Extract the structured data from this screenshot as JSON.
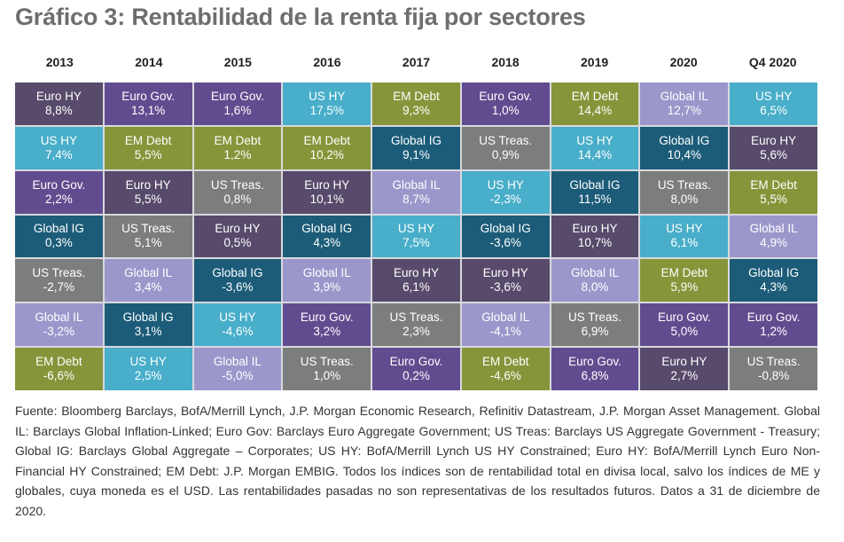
{
  "title": "Gráfico 3: Rentabilidad de la renta fija por sectores",
  "chart_data": {
    "type": "table",
    "title": "Gráfico 3: Rentabilidad de la renta fija por sectores",
    "columns": [
      "2013",
      "2014",
      "2015",
      "2016",
      "2017",
      "2018",
      "2019",
      "2020",
      "Q4 2020"
    ],
    "ranking_note": "Each column ranked from highest (top) to lowest (bottom) return",
    "sector_colors": {
      "Euro HY": "#574a6b",
      "Euro Gov.": "#614c8f",
      "US HY": "#48aec9",
      "EM Debt": "#86953a",
      "Global IG": "#1c5c79",
      "US Treas.": "#7b7e7c",
      "Global IL": "#9c97cb"
    },
    "data": [
      [
        {
          "name": "Euro HY",
          "value": "8,8%"
        },
        {
          "name": "US HY",
          "value": "7,4%"
        },
        {
          "name": "Euro Gov.",
          "value": "2,2%"
        },
        {
          "name": "Global IG",
          "value": "0,3%"
        },
        {
          "name": "US Treas.",
          "value": "-2,7%"
        },
        {
          "name": "Global IL",
          "value": "-3,2%"
        },
        {
          "name": "EM Debt",
          "value": "-6,6%"
        }
      ],
      [
        {
          "name": "Euro Gov.",
          "value": "13,1%"
        },
        {
          "name": "EM Debt",
          "value": "5,5%"
        },
        {
          "name": "Euro HY",
          "value": "5,5%"
        },
        {
          "name": "US Treas.",
          "value": "5,1%"
        },
        {
          "name": "Global IL",
          "value": "3,4%"
        },
        {
          "name": "Global IG",
          "value": "3,1%"
        },
        {
          "name": "US HY",
          "value": "2,5%"
        }
      ],
      [
        {
          "name": "Euro Gov.",
          "value": "1,6%"
        },
        {
          "name": "EM Debt",
          "value": "1,2%"
        },
        {
          "name": "US Treas.",
          "value": "0,8%"
        },
        {
          "name": "Euro HY",
          "value": "0,5%"
        },
        {
          "name": "Global IG",
          "value": "-3,6%"
        },
        {
          "name": "US HY",
          "value": "-4,6%"
        },
        {
          "name": "Global IL",
          "value": "-5,0%"
        }
      ],
      [
        {
          "name": "US HY",
          "value": "17,5%"
        },
        {
          "name": "EM Debt",
          "value": "10,2%"
        },
        {
          "name": "Euro HY",
          "value": "10,1%"
        },
        {
          "name": "Global IG",
          "value": "4,3%"
        },
        {
          "name": "Global IL",
          "value": "3,9%"
        },
        {
          "name": "Euro Gov.",
          "value": "3,2%"
        },
        {
          "name": "US Treas.",
          "value": "1,0%"
        }
      ],
      [
        {
          "name": "EM Debt",
          "value": "9,3%"
        },
        {
          "name": "Global IG",
          "value": "9,1%"
        },
        {
          "name": "Global IL",
          "value": "8,7%"
        },
        {
          "name": "US HY",
          "value": "7,5%"
        },
        {
          "name": "Euro HY",
          "value": "6,1%"
        },
        {
          "name": "US Treas.",
          "value": "2,3%"
        },
        {
          "name": "Euro Gov.",
          "value": "0,2%"
        }
      ],
      [
        {
          "name": "Euro Gov.",
          "value": "1,0%"
        },
        {
          "name": "US Treas.",
          "value": "0,9%"
        },
        {
          "name": "US HY",
          "value": "-2,3%"
        },
        {
          "name": "Global IG",
          "value": "-3,6%"
        },
        {
          "name": "Euro HY",
          "value": "-3,6%"
        },
        {
          "name": "Global IL",
          "value": "-4,1%"
        },
        {
          "name": "EM Debt",
          "value": "-4,6%"
        }
      ],
      [
        {
          "name": "EM Debt",
          "value": "14,4%"
        },
        {
          "name": "US HY",
          "value": "14,4%"
        },
        {
          "name": "Global IG",
          "value": "11,5%"
        },
        {
          "name": "Euro HY",
          "value": "10,7%"
        },
        {
          "name": "Global IL",
          "value": "8,0%"
        },
        {
          "name": "US Treas.",
          "value": "6,9%"
        },
        {
          "name": "Euro Gov.",
          "value": "6,8%"
        }
      ],
      [
        {
          "name": "Global IL",
          "value": "12,7%"
        },
        {
          "name": "Global IG",
          "value": "10,4%"
        },
        {
          "name": "US Treas.",
          "value": "8,0%"
        },
        {
          "name": "US HY",
          "value": "6,1%"
        },
        {
          "name": "EM Debt",
          "value": "5,9%"
        },
        {
          "name": "Euro Gov.",
          "value": "5,0%"
        },
        {
          "name": "Euro HY",
          "value": "2,7%"
        }
      ],
      [
        {
          "name": "US HY",
          "value": "6,5%"
        },
        {
          "name": "Euro HY",
          "value": "5,6%"
        },
        {
          "name": "EM Debt",
          "value": "5,5%"
        },
        {
          "name": "Global IL",
          "value": "4,9%"
        },
        {
          "name": "Global IG",
          "value": "4,3%"
        },
        {
          "name": "Euro Gov.",
          "value": "1,2%"
        },
        {
          "name": "US Treas.",
          "value": "-0,8%"
        }
      ]
    ]
  },
  "footnote": "Fuente: Bloomberg Barclays, BofA/Merrill Lynch, J.P. Morgan Economic Research, Refinitiv Datastream, J.P. Morgan Asset Management. Global IL: Barclays Global Inflation-Linked; Euro Gov: Barclays Euro Aggregate Government; US Treas: Barclays US Aggregate Government - Treasury; Global IG: Barclays Global Aggregate – Corporates; US HY: BofA/Merrill Lynch US HY Constrained; Euro HY: BofA/Merrill Lynch Euro Non-Financial HY Constrained; EM Debt: J.P. Morgan EMBIG. Todos los índices son de rentabilidad total en divisa local, salvo los índices de ME y globales, cuya moneda es el USD. Las rentabilidades pasadas no son representativas de los resultados futuros. Datos a 31 de diciembre de 2020."
}
